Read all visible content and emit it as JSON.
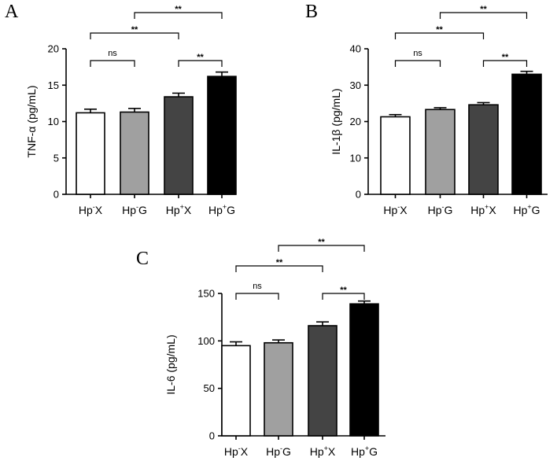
{
  "chart_data": [
    {
      "panel": "A",
      "type": "bar",
      "title": "",
      "xlabel": "",
      "ylabel": "TNF-α (pg/mL)",
      "ylim": [
        0,
        20
      ],
      "yticks": [
        0,
        5,
        10,
        15,
        20
      ],
      "categories": [
        {
          "base": "Hp",
          "sup": "-",
          "suffix": "X"
        },
        {
          "base": "Hp",
          "sup": "-",
          "suffix": "G"
        },
        {
          "base": "Hp",
          "sup": "+",
          "suffix": "X"
        },
        {
          "base": "Hp",
          "sup": "+",
          "suffix": "G"
        }
      ],
      "values": [
        11.2,
        11.3,
        13.4,
        16.2
      ],
      "errors": [
        0.5,
        0.5,
        0.5,
        0.6
      ],
      "bar_colors": [
        "#ffffff",
        "#a0a0a0",
        "#444444",
        "#000000"
      ],
      "comparisons": [
        {
          "from": 0,
          "to": 1,
          "label": "ns",
          "level": 0
        },
        {
          "from": 2,
          "to": 3,
          "label": "**",
          "level": 0
        },
        {
          "from": 0,
          "to": 2,
          "label": "**",
          "level": 1
        },
        {
          "from": 1,
          "to": 3,
          "label": "**",
          "level": 2
        }
      ]
    },
    {
      "panel": "B",
      "type": "bar",
      "title": "",
      "xlabel": "",
      "ylabel": "IL-1β (pg/mL)",
      "ylim": [
        0,
        40
      ],
      "yticks": [
        0,
        10,
        20,
        30,
        40
      ],
      "categories": [
        {
          "base": "Hp",
          "sup": "-",
          "suffix": "X"
        },
        {
          "base": "Hp",
          "sup": "-",
          "suffix": "G"
        },
        {
          "base": "Hp",
          "sup": "+",
          "suffix": "X"
        },
        {
          "base": "Hp",
          "sup": "+",
          "suffix": "G"
        }
      ],
      "values": [
        21.3,
        23.3,
        24.6,
        33.0
      ],
      "errors": [
        0.6,
        0.5,
        0.6,
        0.8
      ],
      "bar_colors": [
        "#ffffff",
        "#a0a0a0",
        "#444444",
        "#000000"
      ],
      "comparisons": [
        {
          "from": 0,
          "to": 1,
          "label": "ns",
          "level": 0
        },
        {
          "from": 2,
          "to": 3,
          "label": "**",
          "level": 0
        },
        {
          "from": 0,
          "to": 2,
          "label": "**",
          "level": 1
        },
        {
          "from": 1,
          "to": 3,
          "label": "**",
          "level": 2
        }
      ]
    },
    {
      "panel": "C",
      "type": "bar",
      "title": "",
      "xlabel": "",
      "ylabel": "IL-6 (pg/mL)",
      "ylim": [
        0,
        150
      ],
      "yticks": [
        0,
        50,
        100,
        150
      ],
      "categories": [
        {
          "base": "Hp",
          "sup": "-",
          "suffix": "X"
        },
        {
          "base": "Hp",
          "sup": "-",
          "suffix": "G"
        },
        {
          "base": "Hp",
          "sup": "+",
          "suffix": "X"
        },
        {
          "base": "Hp",
          "sup": "+",
          "suffix": "G"
        }
      ],
      "values": [
        95,
        98,
        116,
        139
      ],
      "errors": [
        4,
        3,
        4,
        3
      ],
      "bar_colors": [
        "#ffffff",
        "#a0a0a0",
        "#444444",
        "#000000"
      ],
      "comparisons": [
        {
          "from": 0,
          "to": 1,
          "label": "ns",
          "level": 0
        },
        {
          "from": 2,
          "to": 3,
          "label": "**",
          "level": 0
        },
        {
          "from": 0,
          "to": 2,
          "label": "**",
          "level": 1
        },
        {
          "from": 1,
          "to": 3,
          "label": "**",
          "level": 2
        }
      ]
    }
  ]
}
